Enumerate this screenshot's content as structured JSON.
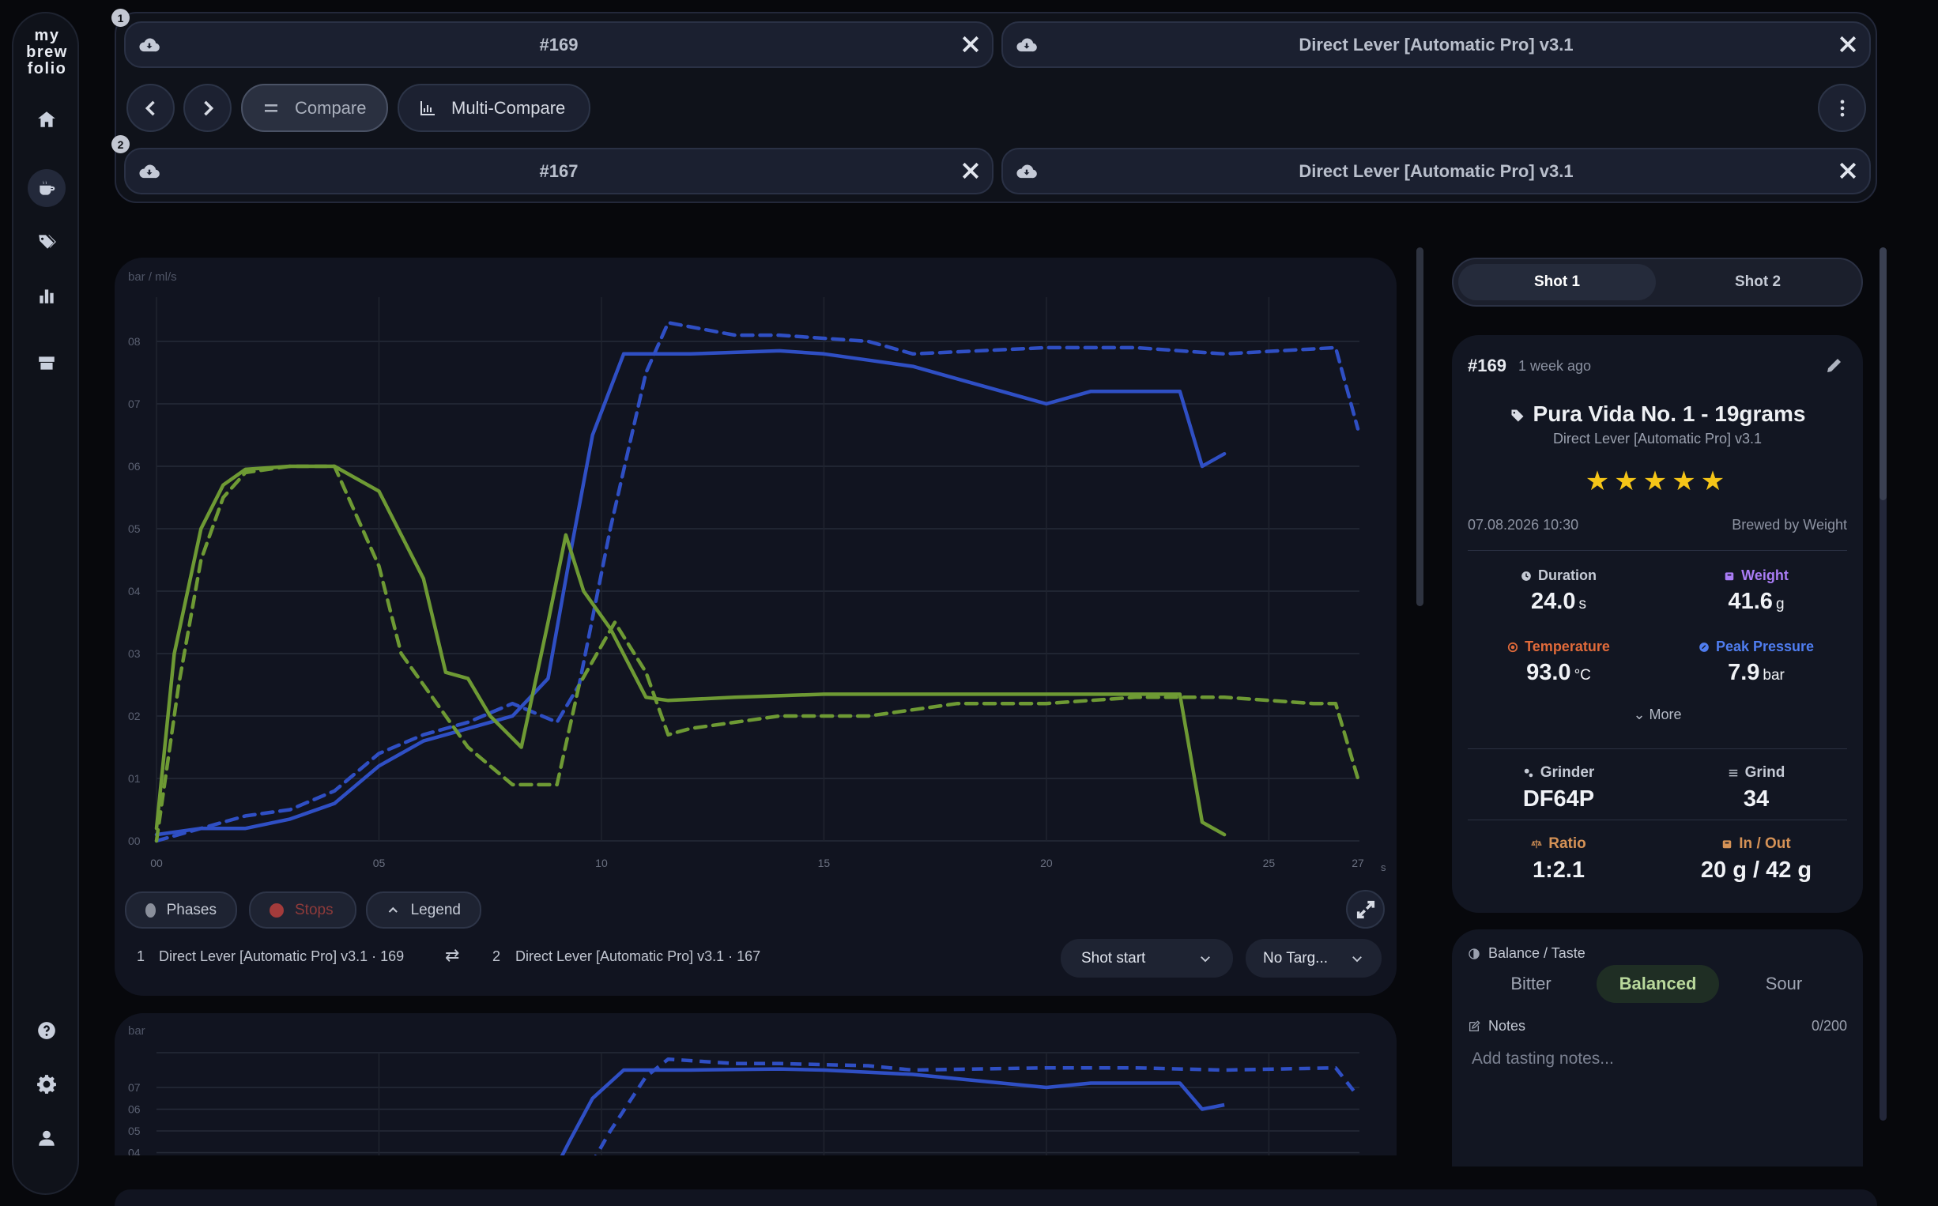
{
  "app": {
    "logo": [
      "my",
      "brew",
      "folio"
    ]
  },
  "sidebar": {
    "items": [
      {
        "icon": "home-icon"
      },
      {
        "icon": "coffee-cup-icon",
        "active": true
      },
      {
        "icon": "tags-icon"
      },
      {
        "icon": "bar-chart-icon"
      },
      {
        "icon": "machine-icon"
      }
    ],
    "bottom": [
      {
        "icon": "help-icon"
      },
      {
        "icon": "gear-icon"
      },
      {
        "icon": "user-icon"
      }
    ]
  },
  "compare": {
    "row1": {
      "badge": "1",
      "shot": "#169",
      "profile": "Direct Lever [Automatic Pro] v3.1"
    },
    "row2": {
      "badge": "2",
      "shot": "#167",
      "profile": "Direct Lever [Automatic Pro] v3.1"
    },
    "toolbar": {
      "compare_label": "Compare",
      "multi_compare_label": "Multi-Compare"
    }
  },
  "chart": {
    "unit_label": "bar / ml/s",
    "x_unit": "s",
    "controls": {
      "phases": "Phases",
      "stops": "Stops",
      "legend": "Legend"
    },
    "legend_line": {
      "shot1_num": "1",
      "shot1": "Direct Lever [Automatic Pro] v3.1 · 169",
      "swap": "⇄",
      "shot2_num": "2",
      "shot2": "Direct Lever [Automatic Pro] v3.1 · 167"
    },
    "align_select": "Shot start",
    "target_select": "No Targ...",
    "colors": {
      "pressure": "#2f4fc4",
      "flow": "#6e9a34"
    }
  },
  "chart_data": {
    "type": "line",
    "title": "",
    "xlabel": "s",
    "ylabel": "bar / ml/s",
    "xlim": [
      0,
      27
    ],
    "ylim": [
      0,
      8
    ],
    "x_ticks": [
      "00",
      "05",
      "10",
      "15",
      "20",
      "25",
      "27"
    ],
    "y_ticks": [
      "00",
      "01",
      "02",
      "03",
      "04",
      "05",
      "06",
      "07",
      "08"
    ],
    "series": [
      {
        "style": "solid",
        "color": "#2f4fc4",
        "points": [
          [
            0,
            0.1
          ],
          [
            1,
            0.2
          ],
          [
            2,
            0.2
          ],
          [
            3,
            0.35
          ],
          [
            4,
            0.6
          ],
          [
            5,
            1.2
          ],
          [
            6,
            1.6
          ],
          [
            7,
            1.8
          ],
          [
            8,
            2.0
          ],
          [
            8.8,
            2.6
          ],
          [
            9.3,
            4.6
          ],
          [
            9.8,
            6.5
          ],
          [
            10.5,
            7.8
          ],
          [
            12,
            7.8
          ],
          [
            14,
            7.85
          ],
          [
            15,
            7.8
          ],
          [
            16,
            7.7
          ],
          [
            17,
            7.6
          ],
          [
            18,
            7.4
          ],
          [
            19,
            7.2
          ],
          [
            20,
            7.0
          ],
          [
            21,
            7.2
          ],
          [
            22,
            7.2
          ],
          [
            23,
            7.2
          ],
          [
            23.5,
            6.0
          ],
          [
            24,
            6.2
          ]
        ]
      },
      {
        "style": "dashed",
        "color": "#2f4fc4",
        "points": [
          [
            0,
            0
          ],
          [
            1,
            0.2
          ],
          [
            2,
            0.4
          ],
          [
            3,
            0.5
          ],
          [
            4,
            0.8
          ],
          [
            5,
            1.4
          ],
          [
            6,
            1.7
          ],
          [
            7,
            1.9
          ],
          [
            8,
            2.2
          ],
          [
            9,
            1.9
          ],
          [
            9.5,
            2.5
          ],
          [
            10.2,
            5.0
          ],
          [
            11,
            7.5
          ],
          [
            11.5,
            8.3
          ],
          [
            13,
            8.1
          ],
          [
            14,
            8.1
          ],
          [
            16,
            8.0
          ],
          [
            17,
            7.8
          ],
          [
            20,
            7.9
          ],
          [
            22,
            7.9
          ],
          [
            24,
            7.8
          ],
          [
            26.5,
            7.9
          ],
          [
            27,
            6.6
          ]
        ]
      },
      {
        "style": "solid",
        "color": "#6e9a34",
        "points": [
          [
            0,
            0.2
          ],
          [
            0.4,
            3.0
          ],
          [
            1,
            5.0
          ],
          [
            1.5,
            5.7
          ],
          [
            2,
            5.95
          ],
          [
            3,
            6.0
          ],
          [
            4,
            6.0
          ],
          [
            5,
            5.6
          ],
          [
            6,
            4.2
          ],
          [
            6.5,
            2.7
          ],
          [
            7,
            2.6
          ],
          [
            7.5,
            2.0
          ],
          [
            8.2,
            1.5
          ],
          [
            8.8,
            3.5
          ],
          [
            9.2,
            4.9
          ],
          [
            9.6,
            4.0
          ],
          [
            10.2,
            3.4
          ],
          [
            11,
            2.3
          ],
          [
            11.5,
            2.25
          ],
          [
            13,
            2.3
          ],
          [
            15,
            2.35
          ],
          [
            17,
            2.35
          ],
          [
            20,
            2.35
          ],
          [
            22,
            2.35
          ],
          [
            23,
            2.35
          ],
          [
            23.5,
            0.3
          ],
          [
            24,
            0.1
          ]
        ]
      },
      {
        "style": "dashed",
        "color": "#6e9a34",
        "points": [
          [
            0,
            0
          ],
          [
            0.5,
            2.5
          ],
          [
            1,
            4.5
          ],
          [
            1.5,
            5.5
          ],
          [
            2,
            5.9
          ],
          [
            3,
            6.0
          ],
          [
            4,
            6.0
          ],
          [
            5,
            4.4
          ],
          [
            5.5,
            3.0
          ],
          [
            6,
            2.5
          ],
          [
            6.5,
            2.0
          ],
          [
            7,
            1.5
          ],
          [
            7.5,
            1.2
          ],
          [
            8,
            0.9
          ],
          [
            9,
            0.9
          ],
          [
            9.5,
            2.5
          ],
          [
            10.3,
            3.5
          ],
          [
            11,
            2.7
          ],
          [
            11.5,
            1.7
          ],
          [
            12,
            1.8
          ],
          [
            13,
            1.9
          ],
          [
            14,
            2.0
          ],
          [
            16,
            2.0
          ],
          [
            18,
            2.2
          ],
          [
            20,
            2.2
          ],
          [
            22,
            2.3
          ],
          [
            24,
            2.3
          ],
          [
            26,
            2.2
          ],
          [
            26.5,
            2.2
          ],
          [
            27,
            1.0
          ]
        ]
      }
    ]
  },
  "chart2": {
    "unit_label": "bar",
    "y_ticks": [
      "07",
      "06",
      "05",
      "04"
    ]
  },
  "panel": {
    "tabs": [
      "Shot 1",
      "Shot 2"
    ],
    "active_tab": 0,
    "shot_id": "#169",
    "ago": "1 week ago",
    "bean": "Pura Vida No. 1 - 19grams",
    "profile": "Direct Lever [Automatic Pro] v3.1",
    "stars": "★★★★★",
    "rating": 5,
    "date": "07.08.2026 10:30",
    "brewed_by": "Brewed by Weight",
    "metrics": {
      "duration": {
        "label": "Duration",
        "value": "24.0",
        "unit": "s",
        "color": "#c5cad5"
      },
      "weight": {
        "label": "Weight",
        "value": "41.6",
        "unit": "g",
        "color": "#a97cf5"
      },
      "temperature": {
        "label": "Temperature",
        "value": "93.0",
        "unit": "°C",
        "color": "#e06a3a"
      },
      "peak_pressure": {
        "label": "Peak Pressure",
        "value": "7.9",
        "unit": "bar",
        "color": "#4f7df0"
      }
    },
    "more": "More",
    "grinder": {
      "label": "Grinder",
      "value": "DF64P"
    },
    "grind": {
      "label": "Grind",
      "value": "34"
    },
    "ratio": {
      "label": "Ratio",
      "value": "1:2.1",
      "color": "#d59256"
    },
    "in_out": {
      "label": "In / Out",
      "value": "20 g / 42 g",
      "color": "#d59256"
    }
  },
  "taste": {
    "label": "Balance / Taste",
    "options": [
      "Bitter",
      "Balanced",
      "Sour"
    ],
    "selected": 1,
    "notes_label": "Notes",
    "notes_count": "0/200",
    "notes_placeholder": "Add tasting notes..."
  }
}
